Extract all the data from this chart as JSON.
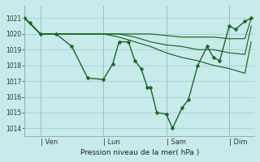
{
  "bg_color": "#c8eaea",
  "grid_color": "#a0c8c8",
  "line_color": "#1a6620",
  "marker_color": "#1a6620",
  "xlabel_text": "Pression niveau de la mer( hPa )",
  "ylim": [
    1013.5,
    1021.8
  ],
  "yticks": [
    1014,
    1015,
    1016,
    1017,
    1018,
    1019,
    1020,
    1021
  ],
  "day_labels": [
    "| Ven",
    "| Lun",
    "| Sam",
    "| Dim"
  ],
  "day_positions": [
    0.5,
    2.5,
    4.5,
    6.5
  ],
  "vline_positions": [
    0.5,
    2.5,
    4.5,
    6.5
  ],
  "xlim": [
    0,
    7.3
  ],
  "line_width": 1.0,
  "marker_size": 2.5,
  "main_x": [
    0,
    0.17,
    0.5,
    1.0,
    1.5,
    2.0,
    2.5,
    2.8,
    3.0,
    3.3,
    3.5,
    3.7,
    3.9,
    4.0,
    4.2,
    4.5,
    4.7,
    5.0,
    5.2,
    5.5,
    5.8,
    6.0,
    6.2,
    6.5,
    6.7,
    7.0,
    7.2
  ],
  "main_y": [
    1021.0,
    1020.7,
    1020.0,
    1020.0,
    1019.2,
    1017.2,
    1017.1,
    1018.1,
    1019.5,
    1019.5,
    1018.3,
    1017.8,
    1016.6,
    1016.6,
    1015.0,
    1014.9,
    1014.0,
    1015.3,
    1015.8,
    1018.0,
    1019.2,
    1018.5,
    1018.3,
    1020.5,
    1020.3,
    1020.8,
    1021.0
  ],
  "smooth1_x": [
    0,
    0.5,
    1.0,
    1.5,
    2.0,
    2.5,
    3.0,
    3.5,
    4.0,
    4.5,
    5.0,
    5.5,
    6.0,
    6.5,
    7.0,
    7.2
  ],
  "smooth1_y": [
    1021.0,
    1020.0,
    1020.0,
    1020.0,
    1020.0,
    1020.0,
    1020.0,
    1020.0,
    1020.0,
    1019.9,
    1019.8,
    1019.8,
    1019.8,
    1019.7,
    1019.7,
    1021.0
  ],
  "smooth2_x": [
    0,
    0.5,
    1.0,
    2.0,
    2.5,
    3.0,
    3.5,
    4.0,
    4.5,
    5.0,
    5.5,
    6.0,
    6.5,
    7.0,
    7.2
  ],
  "smooth2_y": [
    1021.0,
    1020.0,
    1020.0,
    1020.0,
    1020.0,
    1020.0,
    1019.8,
    1019.5,
    1019.3,
    1019.2,
    1019.0,
    1019.0,
    1018.8,
    1018.7,
    1020.5
  ],
  "smooth3_x": [
    0,
    0.5,
    1.0,
    2.0,
    2.5,
    3.0,
    3.5,
    4.0,
    4.5,
    5.0,
    5.5,
    6.0,
    6.5,
    7.0,
    7.2
  ],
  "smooth3_y": [
    1021.0,
    1020.0,
    1020.0,
    1020.0,
    1020.0,
    1019.8,
    1019.5,
    1019.2,
    1018.8,
    1018.5,
    1018.3,
    1018.0,
    1017.8,
    1017.5,
    1019.5
  ]
}
